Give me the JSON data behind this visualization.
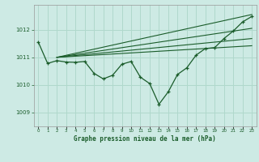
{
  "background_color": "#cdeae4",
  "grid_color": "#b0d8cc",
  "line_color": "#1a5c2a",
  "title": "Graphe pression niveau de la mer (hPa)",
  "ylim": [
    1008.5,
    1012.9
  ],
  "xlim": [
    -0.5,
    23.5
  ],
  "yticks": [
    1009,
    1010,
    1011,
    1012
  ],
  "xticks": [
    0,
    1,
    2,
    3,
    4,
    5,
    6,
    7,
    8,
    9,
    10,
    11,
    12,
    13,
    14,
    15,
    16,
    17,
    18,
    19,
    20,
    21,
    22,
    23
  ],
  "main_x": [
    0,
    1,
    2,
    3,
    4,
    5,
    6,
    7,
    8,
    9,
    10,
    11,
    12,
    13,
    14,
    15,
    16,
    17,
    18,
    19,
    20,
    21,
    22,
    23
  ],
  "main_y": [
    1011.55,
    1010.78,
    1010.88,
    1010.83,
    1010.82,
    1010.85,
    1010.42,
    1010.22,
    1010.35,
    1010.75,
    1010.85,
    1010.28,
    1010.05,
    1009.3,
    1009.75,
    1010.38,
    1010.62,
    1011.08,
    1011.32,
    1011.35,
    1011.68,
    1011.95,
    1012.28,
    1012.48
  ],
  "line2_x": [
    2,
    23
  ],
  "line2_y": [
    1011.0,
    1012.55
  ],
  "line3_x": [
    2,
    23
  ],
  "line3_y": [
    1011.0,
    1012.05
  ],
  "line4_x": [
    2,
    23
  ],
  "line4_y": [
    1011.0,
    1011.68
  ],
  "line5_x": [
    2,
    23
  ],
  "line5_y": [
    1011.0,
    1011.42
  ]
}
